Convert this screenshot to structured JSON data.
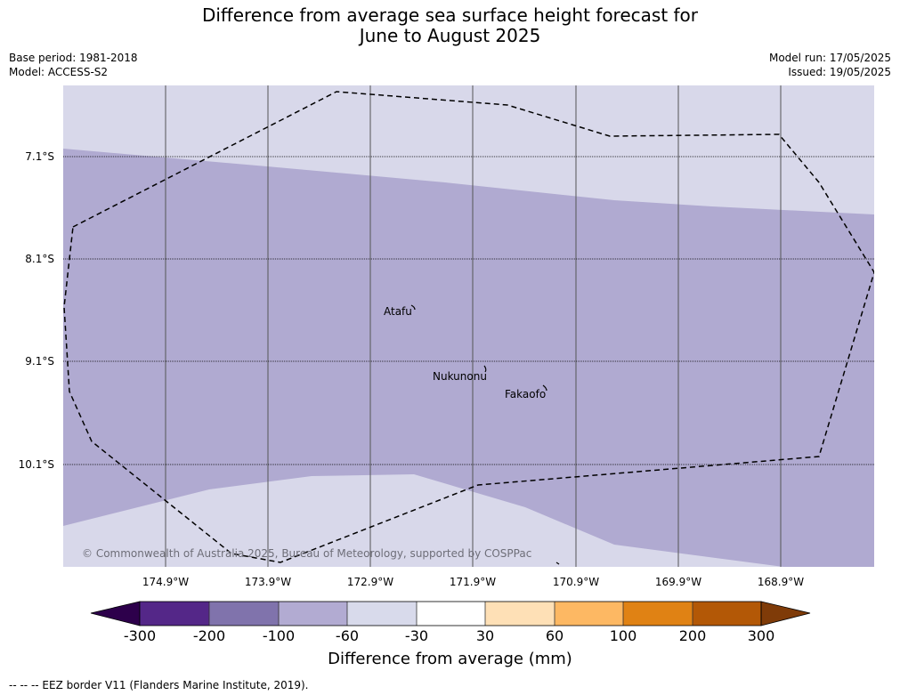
{
  "title_line1": "Difference from average sea surface height forecast for",
  "title_line2": "June to August 2025",
  "base_period": "Base period: 1981-2018",
  "model": "Model: ACCESS-S2",
  "model_run": "Model run: 17/05/2025",
  "issued": "Issued: 19/05/2025",
  "lat_labels": [
    "7.1°S",
    "8.1°S",
    "9.1°S",
    "10.1°S"
  ],
  "lon_labels": [
    "174.9°W",
    "173.9°W",
    "172.9°W",
    "171.9°W",
    "170.9°W",
    "169.9°W",
    "168.9°W"
  ],
  "places": [
    "Atafu",
    "Nukunonu",
    "Fakaofo"
  ],
  "copyright": "© Commonwealth of Australia 2025, Bureau of Meteorology, supported by COSPPac",
  "colorbar": {
    "ticks": [
      "-300",
      "-200",
      "-100",
      "-60",
      "-30",
      "30",
      "60",
      "100",
      "200",
      "300"
    ],
    "colors": [
      "#2d004b",
      "#542788",
      "#8073ac",
      "#b2abd2",
      "#d8daeb",
      "#ffffff",
      "#fee0b6",
      "#fdb863",
      "#e08214",
      "#b35806",
      "#7f3b08"
    ],
    "label": "Difference from average (mm)"
  },
  "footer": "--  --  -- EEZ border V11 (Flanders Marine Institute, 2019)."
}
